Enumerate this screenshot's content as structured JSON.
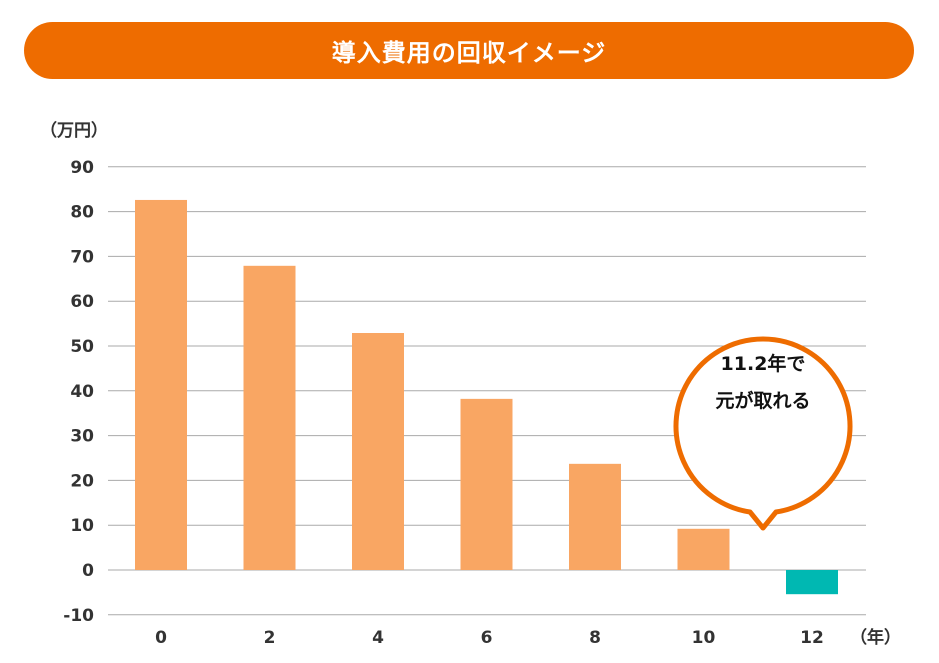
{
  "chart_data": {
    "type": "bar",
    "title": "導入費用の回収イメージ",
    "ylabel": "（万円）",
    "xlabel": "（年）",
    "categories": [
      "0",
      "2",
      "4",
      "6",
      "8",
      "10",
      "12"
    ],
    "values": [
      82.6,
      67.9,
      52.9,
      38.2,
      23.7,
      9.2,
      -5.4
    ],
    "yticks": [
      90,
      80,
      70,
      60,
      50,
      40,
      30,
      20,
      10,
      0,
      -10
    ],
    "ylim": [
      -10,
      90
    ],
    "grid": true,
    "colors": {
      "positive": "#f9a663",
      "negative": "#00b8b2",
      "title_bg": "#ee6c00",
      "negative_tick": "#00a0a0"
    },
    "annotation": {
      "line1": "11.2年で",
      "line2": "元が取れる"
    }
  }
}
